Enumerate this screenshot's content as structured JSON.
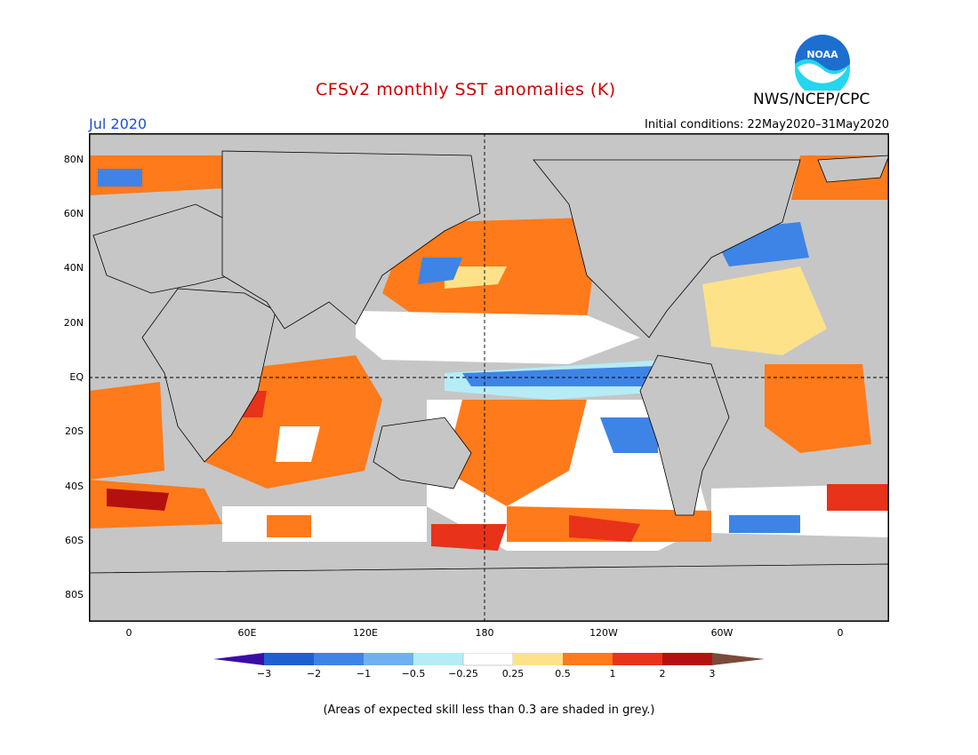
{
  "header": {
    "title": "CFSv2 monthly SST anomalies (K)",
    "month": "Jul 2020",
    "initial_conditions": "Initial conditions: 22May2020–31May2020",
    "agency": "NWS/NCEP/CPC",
    "logo_text": "NOAA"
  },
  "axes": {
    "lat_labels": [
      "80N",
      "60N",
      "40N",
      "20N",
      "EQ",
      "20S",
      "40S",
      "60S",
      "80S"
    ],
    "lon_labels": [
      "0",
      "60E",
      "120E",
      "180",
      "120W",
      "60W",
      "0"
    ]
  },
  "colorbar": {
    "labels": [
      "−3",
      "−2",
      "−1",
      "−0.5",
      "−0.25",
      "0.25",
      "0.5",
      "1",
      "2",
      "3"
    ],
    "colors": [
      "#3b0da6",
      "#1f5fd1",
      "#3e84e6",
      "#6fb0f0",
      "#b6ecf6",
      "#ffffff",
      "#fde28a",
      "#ff7a1a",
      "#e8321a",
      "#b51010",
      "#7a4a3a"
    ]
  },
  "note": "(Areas of expected skill less than 0.3 are shaded in grey.)",
  "colors": {
    "ocean_low_skill": "#c6c6c6",
    "land": "#c6c6c6",
    "title": "#cc0000",
    "month": "#1a4fd8"
  }
}
